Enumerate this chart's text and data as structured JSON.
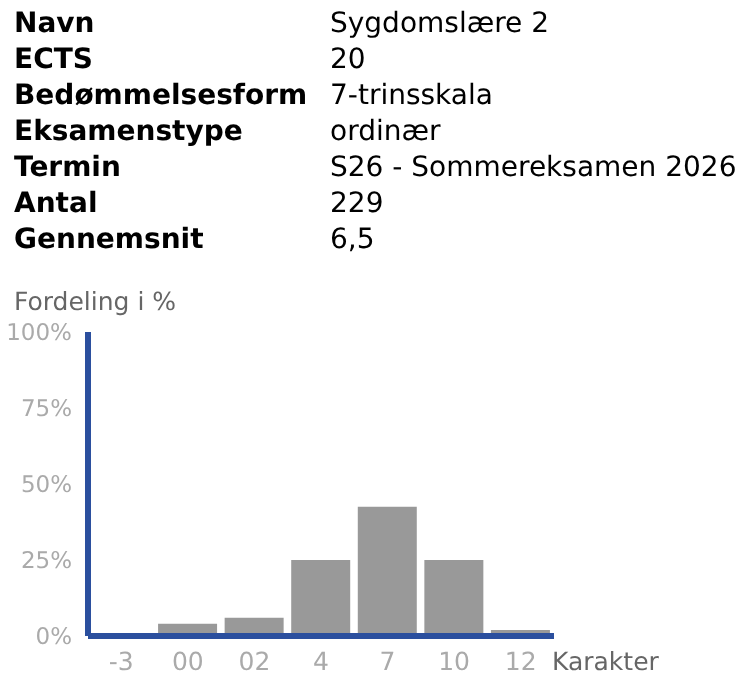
{
  "chart_data": {
    "type": "bar",
    "xlabel": "Karakter",
    "ylabel": "Fordeling i %",
    "annotations": [
      "Navn",
      "Sygdomslære 2",
      "ECTS",
      "20",
      "Bedømmelsesform",
      "7-trinsskala",
      "Eksamenstype",
      "ordinær",
      "Termin",
      "S26 - Sommereksamen 2026",
      "Antal",
      "229",
      "Gennemsnit",
      "6,5"
    ],
    "categories": [
      "-3",
      "00",
      "02",
      "4",
      "7",
      "10",
      "12"
    ],
    "values": [
      0,
      4.5,
      6.5,
      25.5,
      43,
      25.5,
      2.5
    ],
    "color": "#999999",
    "ylim": [
      0,
      100
    ],
    "yticks": [
      {
        "value": 0,
        "label": "0%"
      },
      {
        "value": 25,
        "label": "25%"
      },
      {
        "value": 50,
        "label": "50%"
      },
      {
        "value": 75,
        "label": "75%"
      },
      {
        "value": 100,
        "label": "100%"
      }
    ],
    "grid": false,
    "legend": false
  }
}
